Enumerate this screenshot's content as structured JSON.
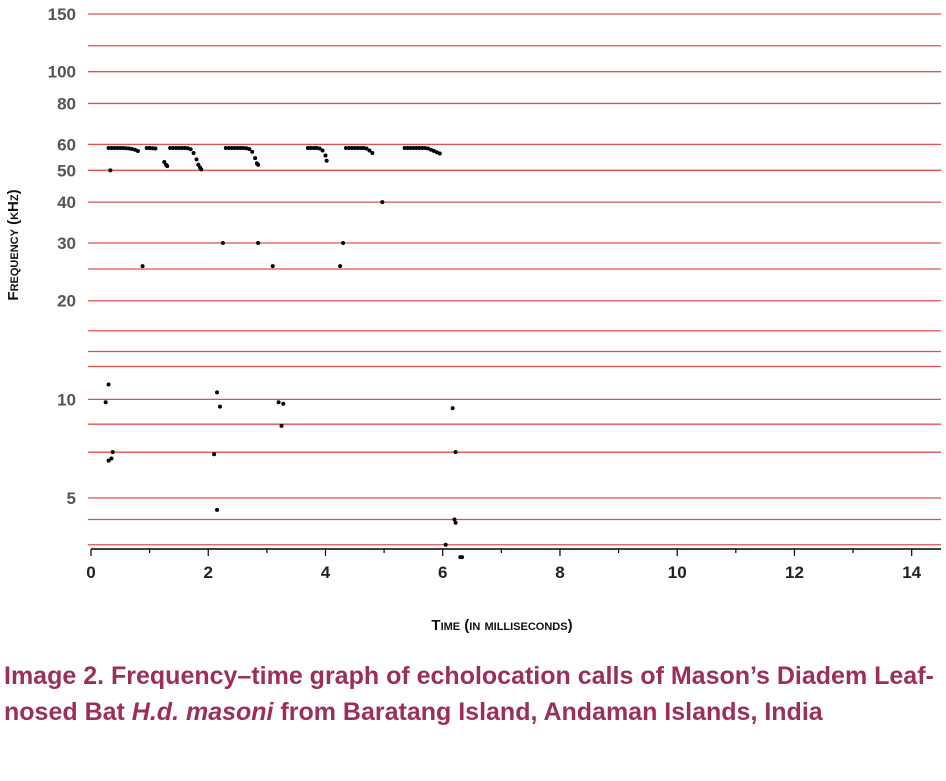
{
  "chart_data": {
    "type": "scatter",
    "xlabel": "Time (in milliseconds)",
    "ylabel": "Frequency (kHz)",
    "xlim": [
      0,
      14.5
    ],
    "xticks": [
      0,
      2,
      4,
      6,
      8,
      10,
      12,
      14
    ],
    "yscale": "log",
    "ylim": [
      3,
      150
    ],
    "yticks": [
      5,
      10,
      20,
      30,
      40,
      50,
      60,
      80,
      100,
      150
    ],
    "grid": "horizontal",
    "grid_lines": [
      3.6,
      4.3,
      5,
      6.9,
      8.4,
      10,
      12.6,
      14,
      16.2,
      20,
      25,
      30,
      40,
      50,
      60,
      80,
      100,
      120,
      150
    ],
    "series": [
      {
        "marker": "dot",
        "color": "#000000",
        "points": [
          [
            0.3,
            58.5
          ],
          [
            0.35,
            58.5
          ],
          [
            0.4,
            58.5
          ],
          [
            0.45,
            58.5
          ],
          [
            0.5,
            58.5
          ],
          [
            0.55,
            58.5
          ],
          [
            0.6,
            58.4
          ],
          [
            0.65,
            58.3
          ],
          [
            0.7,
            58.1
          ],
          [
            0.75,
            57.8
          ],
          [
            0.8,
            57.3
          ],
          [
            0.95,
            58.5
          ],
          [
            1.0,
            58.5
          ],
          [
            1.05,
            58.4
          ],
          [
            1.1,
            58.3
          ],
          [
            1.25,
            53.0
          ],
          [
            1.28,
            52.0
          ],
          [
            1.3,
            51.5
          ],
          [
            1.35,
            58.5
          ],
          [
            1.4,
            58.5
          ],
          [
            1.45,
            58.5
          ],
          [
            1.5,
            58.5
          ],
          [
            1.55,
            58.5
          ],
          [
            1.6,
            58.5
          ],
          [
            1.65,
            58.4
          ],
          [
            1.7,
            58.0
          ],
          [
            1.75,
            56.5
          ],
          [
            1.8,
            54.0
          ],
          [
            1.83,
            52.0
          ],
          [
            1.86,
            51.0
          ],
          [
            1.88,
            50.3
          ],
          [
            2.3,
            58.5
          ],
          [
            2.35,
            58.5
          ],
          [
            2.4,
            58.5
          ],
          [
            2.45,
            58.5
          ],
          [
            2.5,
            58.5
          ],
          [
            2.55,
            58.5
          ],
          [
            2.6,
            58.5
          ],
          [
            2.65,
            58.4
          ],
          [
            2.7,
            58.1
          ],
          [
            2.75,
            57.0
          ],
          [
            2.8,
            54.5
          ],
          [
            2.83,
            52.5
          ],
          [
            2.85,
            52.0
          ],
          [
            3.7,
            58.5
          ],
          [
            3.75,
            58.5
          ],
          [
            3.8,
            58.5
          ],
          [
            3.85,
            58.5
          ],
          [
            3.9,
            58.3
          ],
          [
            3.95,
            57.5
          ],
          [
            4.0,
            55.5
          ],
          [
            4.02,
            53.5
          ],
          [
            4.35,
            58.5
          ],
          [
            4.4,
            58.5
          ],
          [
            4.45,
            58.5
          ],
          [
            4.5,
            58.5
          ],
          [
            4.55,
            58.5
          ],
          [
            4.6,
            58.5
          ],
          [
            4.65,
            58.5
          ],
          [
            4.7,
            58.3
          ],
          [
            4.75,
            57.5
          ],
          [
            4.8,
            56.5
          ],
          [
            5.35,
            58.5
          ],
          [
            5.4,
            58.5
          ],
          [
            5.45,
            58.5
          ],
          [
            5.5,
            58.5
          ],
          [
            5.55,
            58.5
          ],
          [
            5.6,
            58.5
          ],
          [
            5.65,
            58.5
          ],
          [
            5.7,
            58.5
          ],
          [
            5.75,
            58.3
          ],
          [
            5.8,
            57.8
          ],
          [
            5.85,
            57.3
          ],
          [
            5.9,
            56.8
          ],
          [
            5.95,
            56.3
          ],
          [
            0.33,
            50.0
          ],
          [
            0.88,
            25.5
          ],
          [
            2.25,
            30.0
          ],
          [
            2.85,
            30.0
          ],
          [
            3.1,
            25.5
          ],
          [
            4.25,
            25.5
          ],
          [
            4.3,
            30.0
          ],
          [
            4.97,
            40.0
          ],
          [
            0.25,
            9.8
          ],
          [
            0.3,
            11.1
          ],
          [
            0.3,
            6.5
          ],
          [
            0.35,
            6.6
          ],
          [
            0.37,
            6.9
          ],
          [
            2.1,
            6.8
          ],
          [
            2.15,
            10.5
          ],
          [
            2.2,
            9.5
          ],
          [
            2.15,
            4.6
          ],
          [
            3.2,
            9.8
          ],
          [
            3.28,
            9.7
          ],
          [
            3.25,
            8.3
          ],
          [
            6.17,
            9.4
          ],
          [
            6.22,
            6.9
          ],
          [
            6.2,
            4.3
          ],
          [
            6.22,
            4.2
          ],
          [
            6.05,
            3.6
          ],
          [
            6.3,
            3.3
          ],
          [
            6.33,
            3.3
          ]
        ]
      }
    ]
  },
  "caption": {
    "prefix": "Image 2. Frequency–time graph of echolocation calls of Mason’s Diadem Leaf-nosed Bat ",
    "species_italic": "H.d. masoni",
    "suffix": " from Baratang Island, Andaman Islands, India"
  },
  "colors": {
    "grid": "#e05050",
    "points": "#000000",
    "caption": "#9b2f5c",
    "y_tick_text": "#555555"
  }
}
